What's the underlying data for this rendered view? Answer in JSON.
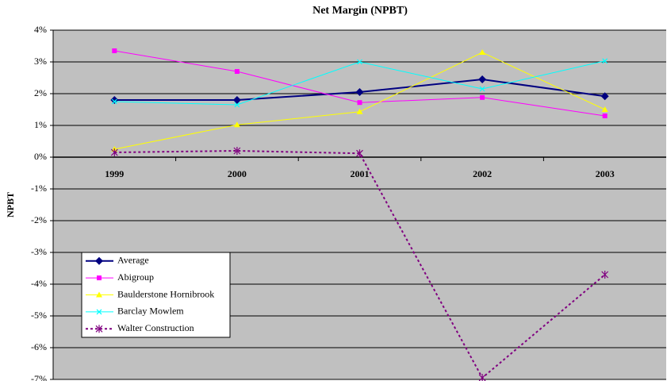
{
  "chart_data": {
    "type": "line",
    "title": "Net Margin (NPBT)",
    "y_label": "NPBT",
    "categories": [
      "1999",
      "2000",
      "2001",
      "2002",
      "2003"
    ],
    "series": [
      {
        "name": "Average",
        "color": "#000080",
        "marker": "diamond",
        "width": 2,
        "values": [
          1.8,
          1.8,
          2.05,
          2.45,
          1.92
        ]
      },
      {
        "name": "Abigroup",
        "color": "#ff00ff",
        "marker": "square",
        "width": 1,
        "values": [
          3.35,
          2.7,
          1.72,
          1.88,
          1.3
        ]
      },
      {
        "name": "Baulderstone Hornibrook",
        "color": "#ffff00",
        "marker": "triangle",
        "width": 1,
        "values": [
          0.25,
          1.02,
          1.43,
          3.3,
          1.5
        ]
      },
      {
        "name": "Barclay Mowlem",
        "color": "#00ffff",
        "marker": "x",
        "width": 1,
        "values": [
          1.75,
          1.65,
          3.0,
          2.15,
          3.03
        ]
      },
      {
        "name": "Walter Construction",
        "color": "#800080",
        "marker": "star",
        "width": 2,
        "dash": true,
        "values": [
          0.15,
          0.2,
          0.12,
          -6.95,
          -3.7
        ]
      }
    ],
    "ylim": [
      -7,
      4
    ],
    "yticks": [
      {
        "value": -7,
        "label": "-7%"
      },
      {
        "value": -6,
        "label": "-6%"
      },
      {
        "value": -5,
        "label": "-5%"
      },
      {
        "value": -4,
        "label": "-4%"
      },
      {
        "value": -3,
        "label": "-3%"
      },
      {
        "value": -2,
        "label": "-2%"
      },
      {
        "value": -1,
        "label": "-1%"
      },
      {
        "value": 0,
        "label": "0%"
      },
      {
        "value": 1,
        "label": "1%"
      },
      {
        "value": 2,
        "label": "2%"
      },
      {
        "value": 3,
        "label": "3%"
      },
      {
        "value": 4,
        "label": "4%"
      }
    ],
    "grid": true,
    "plot_background": "#c0c0c0"
  }
}
